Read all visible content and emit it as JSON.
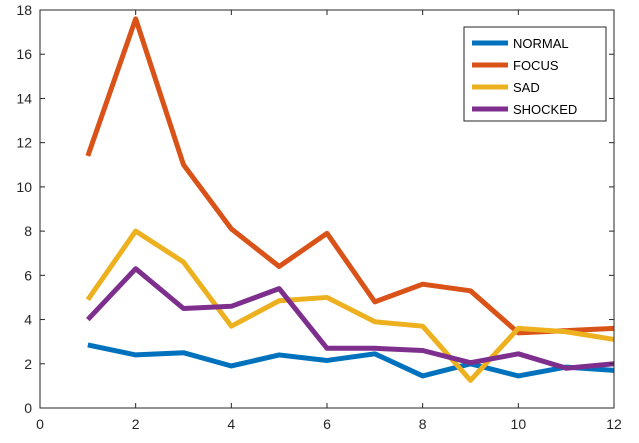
{
  "chart_data": {
    "type": "line",
    "title": "",
    "xlabel": "",
    "ylabel": "",
    "xlim": [
      0,
      12
    ],
    "ylim": [
      0,
      18
    ],
    "x_ticks": [
      0,
      2,
      4,
      6,
      8,
      10,
      12
    ],
    "y_ticks": [
      0,
      2,
      4,
      6,
      8,
      10,
      12,
      14,
      16,
      18
    ],
    "grid": false,
    "legend_position": "top-right",
    "x": [
      1,
      2,
      3,
      4,
      5,
      6,
      7,
      8,
      9,
      10,
      11,
      12
    ],
    "series": [
      {
        "name": "NORMAL",
        "color": "#0072BD",
        "values": [
          2.85,
          2.4,
          2.5,
          1.9,
          2.4,
          2.15,
          2.45,
          1.45,
          2.0,
          1.45,
          1.85,
          1.7
        ]
      },
      {
        "name": "FOCUS",
        "color": "#D95319",
        "values": [
          11.4,
          17.6,
          11.0,
          8.1,
          6.4,
          7.9,
          4.8,
          5.6,
          5.3,
          3.4,
          3.5,
          3.6
        ]
      },
      {
        "name": "SAD",
        "color": "#EDB120",
        "values": [
          4.9,
          8.0,
          6.6,
          3.7,
          4.85,
          5.0,
          3.9,
          3.7,
          1.25,
          3.6,
          3.45,
          3.1
        ]
      },
      {
        "name": "SHOCKED",
        "color": "#7E2F8E",
        "values": [
          4.0,
          6.3,
          4.5,
          4.6,
          5.4,
          2.7,
          2.7,
          2.6,
          2.05,
          2.45,
          1.8,
          2.0
        ]
      }
    ]
  }
}
